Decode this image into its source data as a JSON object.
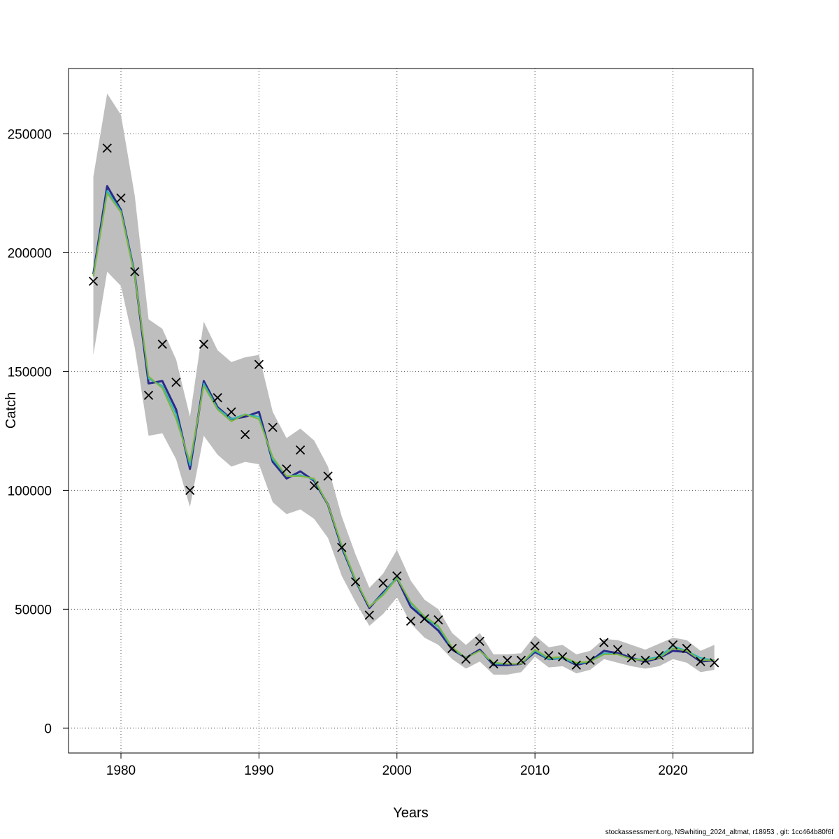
{
  "chart_data": {
    "type": "line",
    "xlabel": "Years",
    "ylabel": "Catch",
    "xlim": [
      1976.2,
      2025.8
    ],
    "ylim": [
      -10500,
      277500
    ],
    "x_ticks": [
      1980,
      1990,
      2000,
      2010,
      2020
    ],
    "y_ticks": [
      0,
      50000,
      100000,
      150000,
      200000,
      250000
    ],
    "grid": true,
    "colors": {
      "band": "#bebebe",
      "line_blue": "#2a2a8a",
      "line_teal": "#2ab5b5",
      "line_green": "#7fb540",
      "observed_marker": "#000000",
      "grid": "#555555"
    },
    "x": [
      1978,
      1979,
      1980,
      1981,
      1982,
      1983,
      1984,
      1985,
      1986,
      1987,
      1988,
      1989,
      1990,
      1991,
      1992,
      1993,
      1994,
      1995,
      1996,
      1997,
      1998,
      1999,
      2000,
      2001,
      2002,
      2003,
      2004,
      2005,
      2006,
      2007,
      2008,
      2009,
      2010,
      2011,
      2012,
      2013,
      2014,
      2015,
      2016,
      2017,
      2018,
      2019,
      2020,
      2021,
      2022,
      2023
    ],
    "band_upper": [
      232000,
      267000,
      258000,
      224000,
      172000,
      168000,
      155000,
      131000,
      171000,
      159000,
      154000,
      156000,
      157000,
      133000,
      122000,
      126000,
      121000,
      110000,
      89000,
      73000,
      59000,
      65000,
      75000,
      62000,
      54000,
      50000,
      40000,
      35000,
      40000,
      31000,
      31000,
      31500,
      39000,
      34000,
      35000,
      31000,
      32500,
      37500,
      37000,
      35000,
      33000,
      35500,
      38000,
      37000,
      32500,
      35000
    ],
    "band_lower": [
      157000,
      192000,
      186000,
      160000,
      123000,
      124000,
      113000,
      93000,
      123000,
      115000,
      110000,
      112000,
      111000,
      95000,
      90000,
      92000,
      88000,
      80000,
      64000,
      53000,
      43000,
      48000,
      55000,
      44000,
      38000,
      35000,
      29000,
      25000,
      28000,
      22500,
      22500,
      23500,
      30000,
      25500,
      26000,
      23000,
      24500,
      29000,
      27500,
      26000,
      25000,
      26000,
      29000,
      27500,
      23500,
      24500
    ],
    "series": [
      {
        "values": [
          191000,
          228000,
          218000,
          191000,
          145000,
          146000,
          134000,
          109000,
          146000,
          135000,
          130000,
          131000,
          133000,
          112000,
          105000,
          108000,
          104000,
          94000,
          76000,
          62000,
          50500,
          57000,
          63000,
          51000,
          46000,
          41000,
          33000,
          29500,
          33000,
          26500,
          26500,
          27000,
          32000,
          29000,
          29500,
          26500,
          28000,
          32500,
          31500,
          29500,
          28000,
          29500,
          32500,
          32000,
          28000,
          28500
        ]
      },
      {
        "values": [
          190500,
          226000,
          217500,
          191000,
          147000,
          144000,
          132000,
          110500,
          145000,
          134500,
          130000,
          132000,
          131000,
          113000,
          106000,
          106500,
          104500,
          94000,
          76500,
          62000,
          51000,
          56500,
          63500,
          52500,
          46500,
          42500,
          33500,
          29500,
          32500,
          27000,
          27000,
          27000,
          32500,
          29000,
          29500,
          27000,
          28000,
          31500,
          31000,
          29000,
          29000,
          30000,
          34500,
          32500,
          29500,
          28500
        ]
      },
      {
        "values": [
          190000,
          225000,
          217000,
          190000,
          148000,
          143000,
          130000,
          112000,
          144000,
          134000,
          129000,
          132000,
          130000,
          114000,
          106000,
          106000,
          105000,
          94000,
          77000,
          62500,
          51000,
          56000,
          63000,
          53000,
          47000,
          43000,
          34000,
          29500,
          32500,
          27500,
          27000,
          27000,
          33000,
          29500,
          30000,
          27500,
          28000,
          31000,
          31000,
          29000,
          28500,
          29500,
          33500,
          32500,
          28500,
          28500
        ]
      }
    ],
    "observed": [
      188000,
      244000,
      223000,
      192000,
      140000,
      161500,
      145500,
      100000,
      161500,
      139000,
      133000,
      123500,
      153000,
      126500,
      109000,
      117000,
      102000,
      106000,
      76000,
      61500,
      47500,
      61000,
      64000,
      45000,
      46000,
      45500,
      33500,
      29000,
      36500,
      27000,
      28500,
      28500,
      34500,
      30500,
      30000,
      26500,
      28500,
      36000,
      33000,
      29500,
      28500,
      30500,
      35000,
      33500,
      28000,
      27500
    ]
  },
  "footer_text": "stockassessment.org, NSwhiting_2024_altmat, r18953 , git: 1cc464b80f6f"
}
